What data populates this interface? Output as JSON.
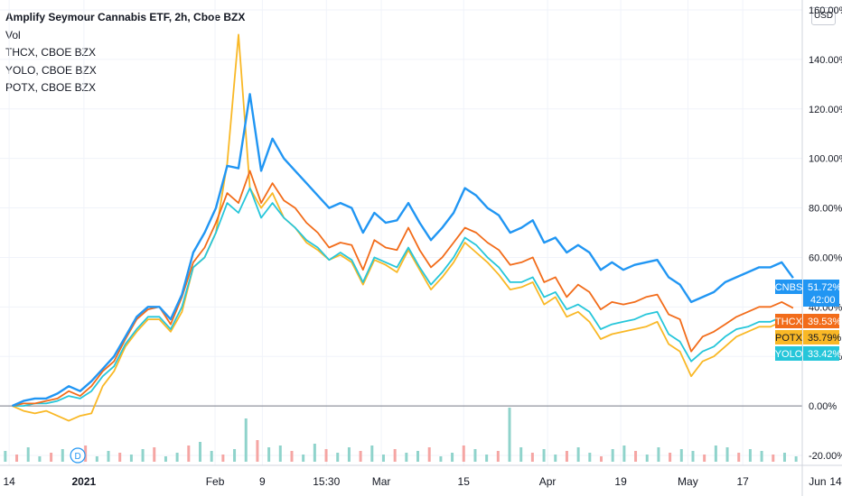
{
  "legend": {
    "title": "Amplify Seymour Cannabis ETF, 2h, Cboe BZX",
    "vol": "Vol",
    "compare": [
      "THCX, CBOE BZX",
      "YOLO, CBOE BZX",
      "POTX, CBOE BZX"
    ]
  },
  "currency_button": "USD",
  "event_marker": "D",
  "colors": {
    "CNBS": "#2196f3",
    "THCX": "#f26c1a",
    "POTX": "#f9b826",
    "YOLO": "#26c6da",
    "baseline": "#787b86",
    "volume_up": "#8fd3cb",
    "volume_down": "#f5a5a3",
    "grid": "#f0f3fa"
  },
  "chart_data": {
    "type": "line",
    "ylim": [
      -24,
      164
    ],
    "x_range": [
      -0.3,
      26
    ],
    "y_unit": "%",
    "grid": true,
    "y_ticks": [
      160,
      140,
      120,
      100,
      80,
      60,
      40,
      20,
      0,
      -20
    ],
    "y_tick_labels": [
      "160.00%",
      "140.00%",
      "120.00%",
      "100.00%",
      "80.00%",
      "60.00%",
      "40.00%",
      "20.00%",
      "0.00%",
      "-20.00%"
    ],
    "x_tick_labels": [
      {
        "t": 0,
        "label": "14",
        "bold": false
      },
      {
        "t": 2.45,
        "label": "2021",
        "bold": true
      },
      {
        "t": 6.75,
        "label": "Feb",
        "bold": false
      },
      {
        "t": 8.3,
        "label": "9",
        "bold": false
      },
      {
        "t": 10.4,
        "label": "15:30",
        "bold": false
      },
      {
        "t": 12.2,
        "label": "Mar",
        "bold": false
      },
      {
        "t": 14.9,
        "label": "15",
        "bold": false
      },
      {
        "t": 17.65,
        "label": "Apr",
        "bold": false
      },
      {
        "t": 20.05,
        "label": "19",
        "bold": false
      },
      {
        "t": 22.25,
        "label": "May",
        "bold": false
      },
      {
        "t": 24.05,
        "label": "17",
        "bold": false
      },
      {
        "t": 26.5,
        "label": "Jun",
        "bold": false
      },
      {
        "t": 28.45,
        "label": "14",
        "bold": false
      }
    ],
    "series": [
      {
        "name": "CNBS",
        "label": "51.72%",
        "sublabel": "42:00",
        "y": [
          0,
          2,
          3,
          3,
          5,
          8,
          6,
          10,
          15,
          20,
          28,
          36,
          40,
          40,
          35,
          45,
          62,
          70,
          80,
          97,
          96,
          126,
          95,
          108,
          100,
          95,
          90,
          85,
          80,
          82,
          80,
          70,
          78,
          74,
          75,
          82,
          74,
          67,
          72,
          78,
          88,
          85,
          80,
          77,
          70,
          72,
          75,
          66,
          68,
          62,
          65,
          62,
          55,
          58,
          55,
          57,
          58,
          59,
          52,
          49,
          42,
          44,
          46,
          50,
          52,
          54,
          56,
          56,
          58,
          51.72
        ]
      },
      {
        "name": "THCX",
        "label": "39.53%",
        "sublabel": "",
        "y": [
          0,
          1,
          1,
          2,
          3,
          6,
          4,
          8,
          14,
          18,
          27,
          35,
          39,
          40,
          33,
          44,
          58,
          64,
          74,
          86,
          82,
          95,
          82,
          90,
          83,
          80,
          74,
          70,
          64,
          66,
          65,
          55,
          67,
          64,
          63,
          72,
          63,
          56,
          60,
          66,
          72,
          70,
          66,
          63,
          57,
          58,
          60,
          50,
          52,
          44,
          49,
          46,
          39,
          42,
          41,
          42,
          44,
          45,
          37,
          35,
          22,
          28,
          30,
          33,
          36,
          38,
          40,
          40,
          42,
          39.53
        ]
      },
      {
        "name": "POTX",
        "label": "35.79%",
        "sublabel": "",
        "y": [
          0,
          -2,
          -3,
          -2,
          -4,
          -6,
          -4,
          -3,
          8,
          14,
          24,
          30,
          35,
          35,
          30,
          38,
          56,
          60,
          70,
          98,
          150,
          88,
          80,
          86,
          76,
          72,
          66,
          63,
          59,
          61,
          58,
          49,
          59,
          57,
          54,
          63,
          55,
          47,
          52,
          58,
          66,
          62,
          58,
          53,
          47,
          48,
          50,
          41,
          44,
          36,
          38,
          34,
          27,
          29,
          30,
          31,
          32,
          34,
          25,
          22,
          12,
          18,
          20,
          24,
          28,
          30,
          32,
          32,
          34,
          35.79
        ]
      },
      {
        "name": "YOLO",
        "label": "33.42%",
        "sublabel": "",
        "y": [
          0,
          0,
          1,
          1,
          2,
          4,
          3,
          6,
          12,
          16,
          25,
          31,
          36,
          36,
          31,
          40,
          56,
          60,
          70,
          82,
          78,
          88,
          76,
          82,
          76,
          72,
          67,
          64,
          59,
          62,
          59,
          50,
          60,
          58,
          56,
          64,
          56,
          49,
          54,
          60,
          68,
          65,
          60,
          56,
          50,
          50,
          52,
          44,
          46,
          39,
          41,
          38,
          31,
          33,
          34,
          35,
          37,
          38,
          29,
          26,
          18,
          22,
          24,
          28,
          31,
          32,
          34,
          34,
          36,
          33.42
        ]
      }
    ],
    "volume": [
      6,
      4,
      8,
      3,
      5,
      7,
      4,
      9,
      3,
      6,
      5,
      4,
      7,
      8,
      3,
      5,
      9,
      11,
      6,
      4,
      7,
      24,
      12,
      8,
      9,
      6,
      4,
      10,
      7,
      5,
      8,
      6,
      9,
      4,
      7,
      5,
      6,
      8,
      3,
      5,
      9,
      7,
      4,
      6,
      30,
      8,
      5,
      7,
      4,
      6,
      8,
      5,
      3,
      7,
      9,
      6,
      4,
      8,
      5,
      7,
      6,
      4,
      9,
      8,
      5,
      7,
      6,
      4,
      5,
      3
    ]
  }
}
